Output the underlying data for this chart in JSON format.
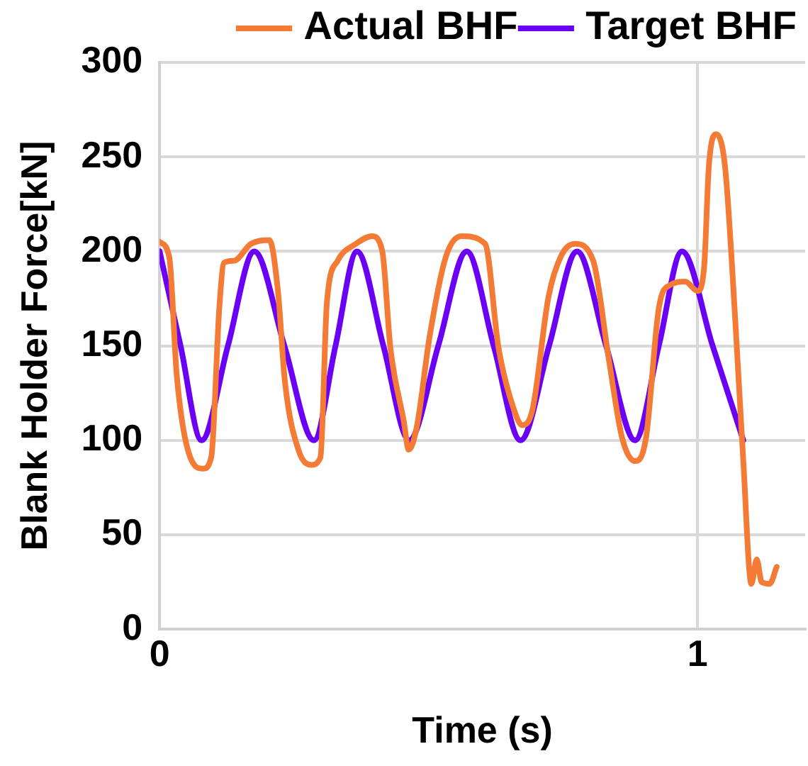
{
  "chart_data": {
    "type": "line",
    "xlabel": "Time (s)",
    "ylabel": "Blank Holder Force[kN]",
    "xlim": [
      0,
      1.2
    ],
    "xticks": [
      0,
      1
    ],
    "ylim": [
      0,
      300
    ],
    "yticks": [
      0,
      50,
      100,
      150,
      200,
      250,
      300
    ],
    "grid": true,
    "legend": "top right",
    "marker": "none",
    "line_style": "solid",
    "series": [
      {
        "name": "Actual BHF",
        "color": "#f47b36",
        "x": [
          0,
          0.018,
          0.032,
          0.057,
          0.081,
          0.096,
          0.111,
          0.12,
          0.138,
          0.17,
          0.204,
          0.22,
          0.233,
          0.258,
          0.282,
          0.299,
          0.311,
          0.331,
          0.365,
          0.395,
          0.414,
          0.429,
          0.454,
          0.463,
          0.478,
          0.502,
          0.532,
          0.561,
          0.605,
          0.63,
          0.659,
          0.674,
          0.693,
          0.723,
          0.747,
          0.772,
          0.806,
          0.835,
          0.86,
          0.884,
          0.904,
          0.928,
          0.948,
          0.977,
          1.0,
          1.012,
          1.021,
          1.034,
          1.051,
          1.07,
          1.085,
          1.1,
          1.11,
          1.119,
          1.134,
          1.147
        ],
        "values": [
          205,
          197,
          134,
          91,
          85,
          91,
          170,
          194,
          195,
          204,
          206,
          179,
          131,
          95,
          87,
          91,
          173,
          195,
          204,
          208,
          200,
          149,
          110,
          95,
          107,
          155,
          197,
          208,
          204,
          149,
          116,
          108,
          116,
          176,
          198,
          204,
          195,
          143,
          101,
          89,
          101,
          170,
          182,
          184,
          179,
          191,
          245,
          262,
          245,
          164,
          89,
          24,
          37,
          25,
          24,
          33
        ]
      },
      {
        "name": "Target BHF",
        "color": "#6a00f4",
        "x": [
          0,
          0.039,
          0.078,
          0.127,
          0.176,
          0.232,
          0.287,
          0.327,
          0.367,
          0.416,
          0.464,
          0.518,
          0.571,
          0.621,
          0.671,
          0.724,
          0.776,
          0.83,
          0.884,
          0.928,
          0.971,
          1.028,
          1.085
        ],
        "values": [
          200,
          150,
          100,
          150,
          200,
          150,
          100,
          150,
          200,
          150,
          100,
          150,
          200,
          150,
          100,
          150,
          200,
          150,
          100,
          150,
          200,
          150,
          100
        ]
      }
    ]
  }
}
